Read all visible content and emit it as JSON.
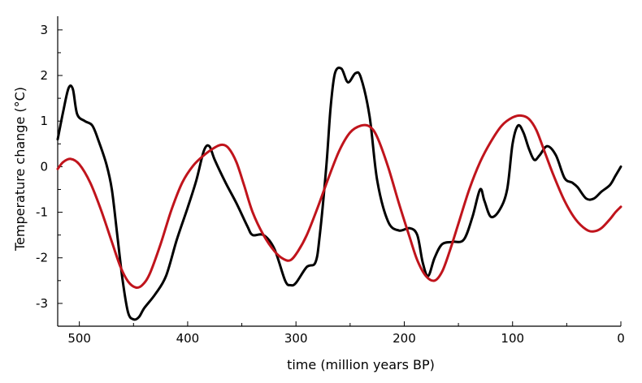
{
  "chart_data": {
    "type": "line",
    "title": "",
    "xlabel": "time (million years BP)",
    "ylabel": "Temperature change (°C)",
    "xlim": [
      520,
      0
    ],
    "ylim": [
      -3.5,
      3.3
    ],
    "x_reversed": true,
    "grid": false,
    "legend": "none",
    "xticks": [
      500,
      400,
      300,
      200,
      100,
      0
    ],
    "yticks": [
      3,
      2,
      1,
      0,
      -1,
      -2,
      -3
    ],
    "series": [
      {
        "color": "#000000",
        "points": [
          [
            520,
            0.6
          ],
          [
            515,
            1.2
          ],
          [
            510,
            1.72
          ],
          [
            506,
            1.7
          ],
          [
            502,
            1.15
          ],
          [
            495,
            1.0
          ],
          [
            488,
            0.9
          ],
          [
            482,
            0.55
          ],
          [
            475,
            0.05
          ],
          [
            470,
            -0.5
          ],
          [
            465,
            -1.5
          ],
          [
            460,
            -2.5
          ],
          [
            455,
            -3.2
          ],
          [
            450,
            -3.35
          ],
          [
            445,
            -3.3
          ],
          [
            440,
            -3.1
          ],
          [
            430,
            -2.8
          ],
          [
            420,
            -2.4
          ],
          [
            410,
            -1.6
          ],
          [
            400,
            -0.9
          ],
          [
            392,
            -0.3
          ],
          [
            385,
            0.35
          ],
          [
            380,
            0.45
          ],
          [
            375,
            0.15
          ],
          [
            365,
            -0.35
          ],
          [
            355,
            -0.8
          ],
          [
            345,
            -1.3
          ],
          [
            340,
            -1.5
          ],
          [
            330,
            -1.5
          ],
          [
            320,
            -1.8
          ],
          [
            310,
            -2.5
          ],
          [
            305,
            -2.6
          ],
          [
            300,
            -2.55
          ],
          [
            290,
            -2.2
          ],
          [
            282,
            -2.1
          ],
          [
            278,
            -1.5
          ],
          [
            272,
            0.0
          ],
          [
            268,
            1.3
          ],
          [
            264,
            2.05
          ],
          [
            258,
            2.15
          ],
          [
            252,
            1.85
          ],
          [
            245,
            2.05
          ],
          [
            240,
            1.95
          ],
          [
            232,
            1.1
          ],
          [
            225,
            -0.3
          ],
          [
            215,
            -1.2
          ],
          [
            205,
            -1.4
          ],
          [
            195,
            -1.35
          ],
          [
            188,
            -1.5
          ],
          [
            183,
            -2.1
          ],
          [
            178,
            -2.4
          ],
          [
            172,
            -2.0
          ],
          [
            165,
            -1.7
          ],
          [
            155,
            -1.65
          ],
          [
            145,
            -1.6
          ],
          [
            137,
            -1.1
          ],
          [
            130,
            -0.5
          ],
          [
            126,
            -0.75
          ],
          [
            120,
            -1.1
          ],
          [
            112,
            -0.95
          ],
          [
            105,
            -0.5
          ],
          [
            100,
            0.5
          ],
          [
            95,
            0.9
          ],
          [
            90,
            0.75
          ],
          [
            85,
            0.4
          ],
          [
            80,
            0.15
          ],
          [
            75,
            0.25
          ],
          [
            68,
            0.45
          ],
          [
            60,
            0.25
          ],
          [
            52,
            -0.25
          ],
          [
            45,
            -0.35
          ],
          [
            40,
            -0.45
          ],
          [
            32,
            -0.7
          ],
          [
            25,
            -0.7
          ],
          [
            18,
            -0.55
          ],
          [
            10,
            -0.4
          ],
          [
            5,
            -0.2
          ],
          [
            0,
            0.0
          ]
        ]
      },
      {
        "color": "#c0141c",
        "points": [
          [
            520,
            -0.05
          ],
          [
            515,
            0.1
          ],
          [
            508,
            0.17
          ],
          [
            500,
            0.05
          ],
          [
            490,
            -0.35
          ],
          [
            480,
            -0.95
          ],
          [
            470,
            -1.65
          ],
          [
            462,
            -2.2
          ],
          [
            455,
            -2.52
          ],
          [
            448,
            -2.65
          ],
          [
            442,
            -2.6
          ],
          [
            435,
            -2.35
          ],
          [
            425,
            -1.7
          ],
          [
            415,
            -0.95
          ],
          [
            405,
            -0.35
          ],
          [
            395,
            0.02
          ],
          [
            385,
            0.25
          ],
          [
            375,
            0.42
          ],
          [
            368,
            0.48
          ],
          [
            362,
            0.4
          ],
          [
            355,
            0.1
          ],
          [
            348,
            -0.4
          ],
          [
            340,
            -1.0
          ],
          [
            330,
            -1.5
          ],
          [
            320,
            -1.85
          ],
          [
            312,
            -2.02
          ],
          [
            305,
            -2.05
          ],
          [
            298,
            -1.85
          ],
          [
            290,
            -1.5
          ],
          [
            280,
            -0.9
          ],
          [
            270,
            -0.25
          ],
          [
            260,
            0.35
          ],
          [
            250,
            0.75
          ],
          [
            240,
            0.9
          ],
          [
            232,
            0.88
          ],
          [
            225,
            0.65
          ],
          [
            215,
            0.0
          ],
          [
            205,
            -0.8
          ],
          [
            195,
            -1.55
          ],
          [
            188,
            -2.05
          ],
          [
            180,
            -2.4
          ],
          [
            172,
            -2.5
          ],
          [
            165,
            -2.3
          ],
          [
            158,
            -1.85
          ],
          [
            150,
            -1.25
          ],
          [
            140,
            -0.5
          ],
          [
            130,
            0.1
          ],
          [
            120,
            0.55
          ],
          [
            110,
            0.9
          ],
          [
            100,
            1.08
          ],
          [
            92,
            1.12
          ],
          [
            85,
            1.05
          ],
          [
            78,
            0.8
          ],
          [
            70,
            0.3
          ],
          [
            62,
            -0.2
          ],
          [
            52,
            -0.75
          ],
          [
            42,
            -1.15
          ],
          [
            32,
            -1.38
          ],
          [
            25,
            -1.42
          ],
          [
            18,
            -1.35
          ],
          [
            10,
            -1.15
          ],
          [
            5,
            -1.0
          ],
          [
            0,
            -0.88
          ]
        ]
      }
    ]
  }
}
